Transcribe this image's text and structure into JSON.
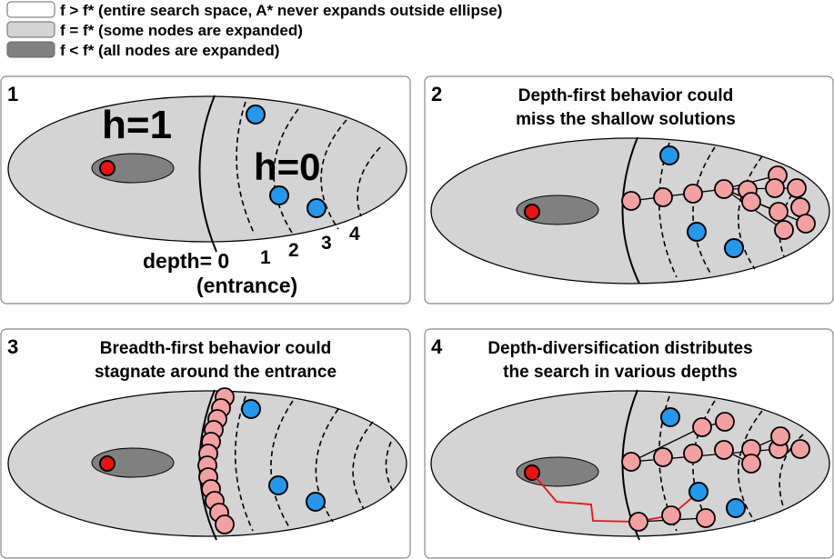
{
  "legend": [
    {
      "label": "f > f*  (entire search space, A* never expands outside ellipse)",
      "fill": "#ffffff"
    },
    {
      "label": "f = f*  (some nodes are expanded)",
      "fill": "#d4d4d4"
    },
    {
      "label": "f < f*  (all nodes are expanded)",
      "fill": "#808080"
    }
  ],
  "colors": {
    "panel_border": "#888888",
    "ellipse_fill": "#d4d4d4",
    "core_fill": "#808080",
    "start_node": "#ee1111",
    "goal_node": "#2299ee",
    "expanded_node": "#f4a0a0",
    "path_line": "#ee1111"
  },
  "panels": [
    {
      "number": "1",
      "title_lines": [],
      "h1_label": "h=1",
      "h0_label": "h=0",
      "depth_numbers": [
        "1",
        "2",
        "3",
        "4"
      ],
      "depth_label": "depth= 0",
      "entrance_label": "(entrance)"
    },
    {
      "number": "2",
      "title_lines": [
        "Depth-first behavior could",
        "miss the shallow solutions"
      ]
    },
    {
      "number": "3",
      "title_lines": [
        "Breadth-first behavior could",
        "stagnate around the entrance"
      ]
    },
    {
      "number": "4",
      "title_lines": [
        "Depth-diversification distributes",
        "the search in various depths"
      ]
    }
  ]
}
